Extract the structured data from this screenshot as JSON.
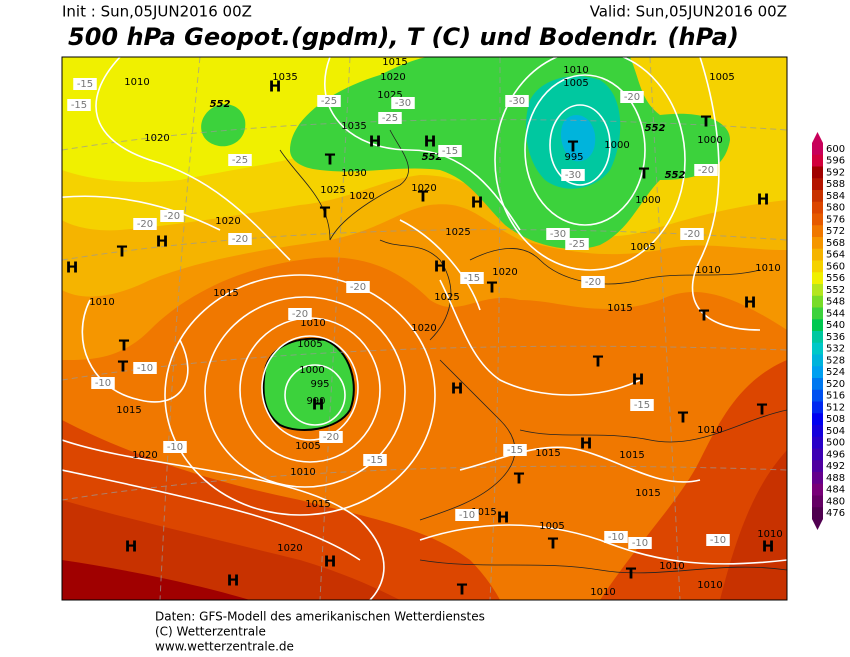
{
  "header": {
    "init": "Init : Sun,05JUN2016 00Z",
    "valid": "Valid: Sun,05JUN2016 00Z",
    "title": "500 hPa Geopot.(gpdm), T (C) und Bodendr. (hPa)"
  },
  "legend": {
    "levels": [
      600,
      596,
      592,
      588,
      584,
      580,
      576,
      572,
      568,
      564,
      560,
      556,
      552,
      548,
      544,
      540,
      536,
      532,
      528,
      524,
      520,
      516,
      512,
      508,
      504,
      500,
      496,
      492,
      488,
      484,
      480,
      476
    ],
    "colors": [
      "#c8005a",
      "#d2003c",
      "#a00000",
      "#b41400",
      "#c83200",
      "#dc4600",
      "#e65a00",
      "#f07800",
      "#f59600",
      "#f5b400",
      "#f5d200",
      "#f0f000",
      "#b4e61e",
      "#78dc28",
      "#3cd23c",
      "#00c850",
      "#00c8a0",
      "#00c8c8",
      "#00b4dc",
      "#00a0f0",
      "#0078f0",
      "#0050f0",
      "#0028f0",
      "#0000f0",
      "#1400dc",
      "#2800c8",
      "#3c00b4",
      "#5000a0",
      "#64008c",
      "#780078",
      "#640064",
      "#500050"
    ]
  },
  "map": {
    "pressure_labels": [
      "1010",
      "1035",
      "1015",
      "1020",
      "1025",
      "1010",
      "1005",
      "1005",
      "1000",
      "1000",
      "995",
      "1000",
      "1005",
      "1010",
      "1010",
      "1020",
      "1035",
      "1030",
      "1025",
      "1020",
      "1020",
      "1025",
      "1020",
      "1020",
      "1025",
      "1020",
      "1015",
      "1010",
      "1005",
      "1000",
      "995",
      "990",
      "1010",
      "1015",
      "1020",
      "1005",
      "1010",
      "1015",
      "1020",
      "1015",
      "1015",
      "1015",
      "1015",
      "1015",
      "1005",
      "1010",
      "1010",
      "1010",
      "1010",
      "1010"
    ],
    "height_labels": [
      "552",
      "552",
      "552",
      "552"
    ],
    "temperature_labels": [
      "-15",
      "-15",
      "-25",
      "-30",
      "-25",
      "-30",
      "-20",
      "-25",
      "-15",
      "-30",
      "-20",
      "-20",
      "-20",
      "-20",
      "-30",
      "-25",
      "-20",
      "-15",
      "-20",
      "-20",
      "-20",
      "-10",
      "-10",
      "-20",
      "-15",
      "-15",
      "-15",
      "-10",
      "-10",
      "-10",
      "-10",
      "-10"
    ],
    "centers": [
      "H",
      "H",
      "T",
      "H",
      "T",
      "T",
      "H",
      "T",
      "T",
      "T",
      "H",
      "H",
      "T",
      "H",
      "H",
      "T",
      "H",
      "T",
      "T",
      "T",
      "H",
      "T",
      "H",
      "H",
      "T",
      "T",
      "H",
      "T",
      "H",
      "T",
      "H",
      "H",
      "H",
      "T",
      "T",
      "H"
    ]
  },
  "footer": {
    "line1": "Daten: GFS-Modell des amerikanischen Wetterdienstes",
    "line2": "(C) Wetterzentrale",
    "line3": "www.wetterzentrale.de"
  }
}
